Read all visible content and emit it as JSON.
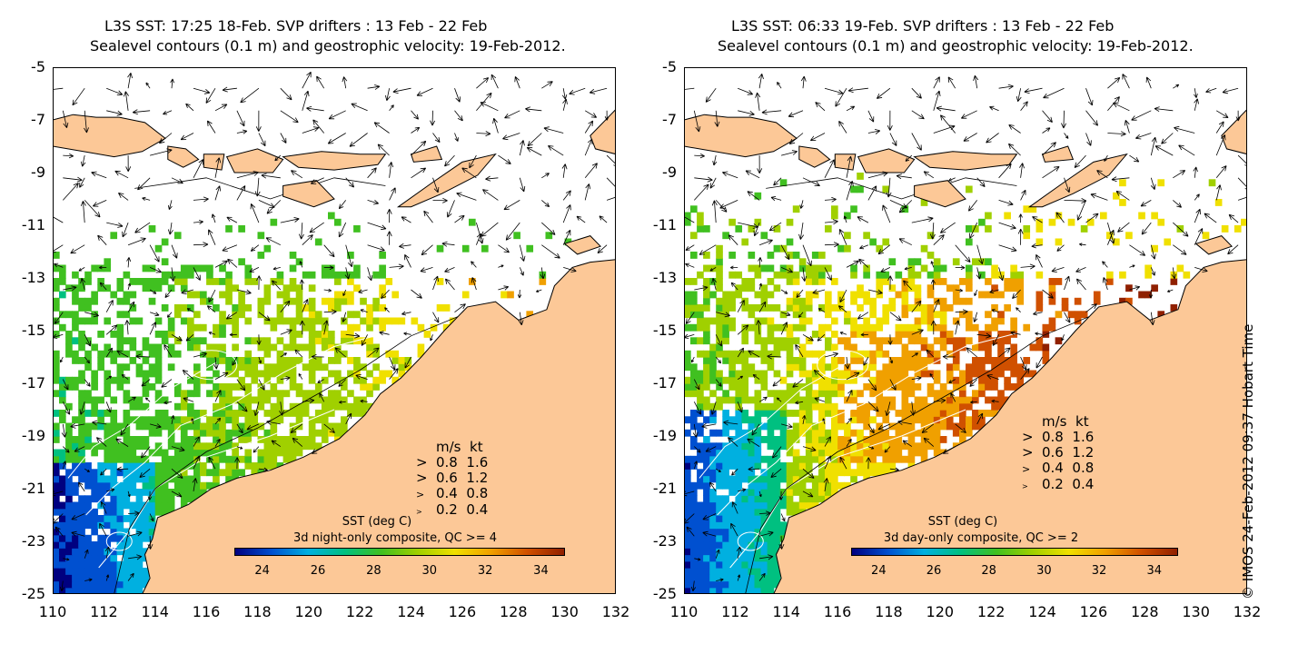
{
  "panels": [
    {
      "title_line1": "L3S SST: 17:25 18-Feb. SVP drifters : 13 Feb - 22 Feb",
      "title_line2": "Sealevel contours (0.1 m) and geostrophic velocity: 19-Feb-2012.",
      "composite": "3d night-only composite, QC >= 4",
      "theme": "night"
    },
    {
      "title_line1": "L3S SST: 06:33 19-Feb. SVP drifters : 13 Feb - 22 Feb",
      "title_line2": "Sealevel contours (0.1 m) and geostrophic velocity: 19-Feb-2012.",
      "composite": "3d day-only composite, QC >= 2",
      "theme": "day"
    }
  ],
  "axes": {
    "y_ticks": [
      "-5",
      "-7",
      "-9",
      "-11",
      "-13",
      "-15",
      "-17",
      "-19",
      "-21",
      "-23",
      "-25"
    ],
    "x_ticks": [
      "110",
      "112",
      "114",
      "116",
      "118",
      "120",
      "122",
      "124",
      "126",
      "128",
      "130",
      "132"
    ],
    "lon_range": [
      110,
      132
    ],
    "lat_range": [
      -25,
      -5
    ]
  },
  "velocity_legend": {
    "header_ms": "m/s",
    "header_kt": "kt",
    "rows": [
      {
        "ms": "0.8",
        "kt": "1.6"
      },
      {
        "ms": "0.6",
        "kt": "1.2"
      },
      {
        "ms": "0.4",
        "kt": "0.8"
      },
      {
        "ms": "0.2",
        "kt": "0.4"
      }
    ]
  },
  "colorbar": {
    "title": "SST (deg C)",
    "ticks": [
      "24",
      "26",
      "28",
      "30",
      "32",
      "34"
    ],
    "range": [
      23,
      34.8
    ],
    "colors": [
      "#000080",
      "#0050d0",
      "#00b0e0",
      "#00c080",
      "#40c020",
      "#a0d000",
      "#f0e000",
      "#f0a000",
      "#d05000",
      "#902000"
    ]
  },
  "credit": "© IMOS 24-Feb-2012 09:37 Hobart Time",
  "colors": {
    "land": "#fcc897",
    "ocean_blank": "#ffffff"
  }
}
